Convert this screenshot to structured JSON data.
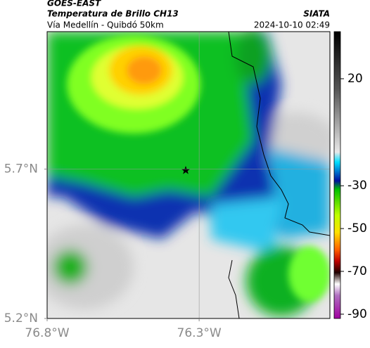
{
  "header": {
    "agency": "GOES-EAST",
    "product": "Temperatura de Brillo CH13",
    "region": "Vía Medellín - Quibdó 50km",
    "source": "SIATA",
    "timestamp": "2024-10-10 02:49"
  },
  "map": {
    "xlim": [
      -76.8,
      -75.87
    ],
    "ylim": [
      5.2,
      6.16
    ],
    "xticks": [
      {
        "value": -76.8,
        "label": "76.8°W"
      },
      {
        "value": -76.3,
        "label": "76.3°W"
      }
    ],
    "yticks": [
      {
        "value": 5.7,
        "label": "5.7°N"
      },
      {
        "value": 5.2,
        "label": "5.2°N"
      }
    ],
    "grid": true
  },
  "colorbar": {
    "lim": [
      -92,
      42
    ],
    "ticks": [
      20,
      -30,
      -50,
      -70,
      -90
    ]
  }
}
